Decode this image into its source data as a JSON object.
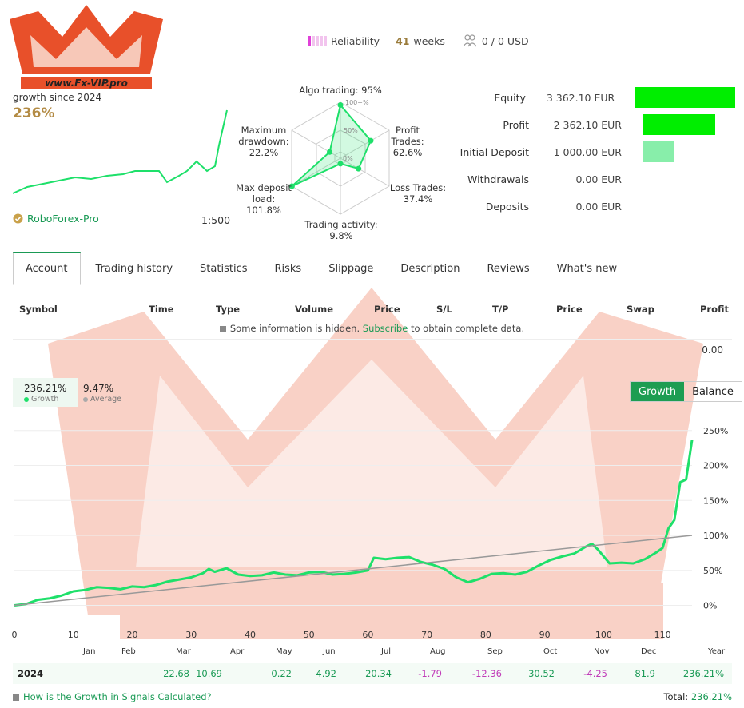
{
  "logo": {
    "text": "www.Fx-VIP.pro"
  },
  "header": {
    "reliability_label": "Reliability",
    "weeks_value": "41",
    "weeks_label": "weeks",
    "subscribers": "0 / 0 USD"
  },
  "growth": {
    "since_label": "growth since 2024",
    "value": "236%"
  },
  "broker": {
    "name": "RoboForex-Pro",
    "leverage": "1:500"
  },
  "radar": {
    "labels": {
      "algo": "Algo trading: 95%",
      "profit_trades": "Profit\nTrades:\n62.6%",
      "loss_trades": "Loss Trades:\n37.4%",
      "activity": "Trading activity: 9.8%",
      "max_deposit_load": "Max deposit\nload:\n101.8%",
      "max_drawdown": "Maximum\ndrawdown:\n22.2%"
    },
    "scale": [
      "100+%",
      "50%",
      "0%"
    ],
    "values": {
      "algo": 95,
      "profit_trades": 62.6,
      "loss_trades": 37.4,
      "activity": 9.8,
      "max_deposit_load": 101.8,
      "max_drawdown": 22.2
    }
  },
  "financials": [
    {
      "label": "Equity",
      "value": "3 362.10 EUR",
      "amount": 3362.1,
      "color": "#00ee00"
    },
    {
      "label": "Profit",
      "value": "2 362.10 EUR",
      "amount": 2362.1,
      "color": "#00ee00"
    },
    {
      "label": "Initial Deposit",
      "value": "1 000.00 EUR",
      "amount": 1000.0,
      "color": "#88eeaa"
    },
    {
      "label": "Withdrawals",
      "value": "0.00 EUR",
      "amount": 0,
      "color": "#88eeaa"
    },
    {
      "label": "Deposits",
      "value": "0.00 EUR",
      "amount": 0,
      "color": "#88eeaa"
    }
  ],
  "tabs": [
    "Account",
    "Trading history",
    "Statistics",
    "Risks",
    "Slippage",
    "Description",
    "Reviews",
    "What's new"
  ],
  "table": {
    "columns": [
      "Symbol",
      "Time",
      "Type",
      "Volume",
      "Price",
      "S/L",
      "T/P",
      "Price",
      "Swap",
      "Profit"
    ],
    "hidden_text_before": "Some information is hidden.",
    "hidden_link": "Subscribe",
    "hidden_text_after": "to obtain complete data.",
    "profit_total": "0.00"
  },
  "chart_legend": {
    "growth_value": "236.21%",
    "growth_label": "Growth",
    "average_value": "9.47%",
    "average_label": "Average"
  },
  "toggle": {
    "growth": "Growth",
    "balance": "Balance"
  },
  "chart_data": {
    "type": "line",
    "xlim": [
      0,
      115
    ],
    "ylim": [
      -20,
      260
    ],
    "x_ticks": [
      "0",
      "10",
      "20",
      "30",
      "40",
      "50",
      "60",
      "70",
      "80",
      "90",
      "100",
      "110"
    ],
    "y_ticks": [
      "250%",
      "200%",
      "150%",
      "100%",
      "50%",
      "0%"
    ],
    "series": [
      {
        "name": "Growth",
        "color": "#1ee06a",
        "points": [
          [
            0,
            0
          ],
          [
            2,
            2
          ],
          [
            4,
            8
          ],
          [
            6,
            10
          ],
          [
            8,
            14
          ],
          [
            10,
            20
          ],
          [
            12,
            22
          ],
          [
            14,
            26
          ],
          [
            16,
            25
          ],
          [
            18,
            23
          ],
          [
            20,
            27
          ],
          [
            22,
            26
          ],
          [
            24,
            29
          ],
          [
            26,
            34
          ],
          [
            28,
            37
          ],
          [
            30,
            40
          ],
          [
            32,
            46
          ],
          [
            33,
            52
          ],
          [
            34,
            48
          ],
          [
            36,
            53
          ],
          [
            38,
            44
          ],
          [
            40,
            42
          ],
          [
            42,
            43
          ],
          [
            44,
            47
          ],
          [
            46,
            44
          ],
          [
            48,
            43
          ],
          [
            50,
            47
          ],
          [
            52,
            48
          ],
          [
            54,
            44
          ],
          [
            56,
            45
          ],
          [
            58,
            47
          ],
          [
            60,
            50
          ],
          [
            61,
            68
          ],
          [
            63,
            66
          ],
          [
            65,
            68
          ],
          [
            67,
            69
          ],
          [
            69,
            62
          ],
          [
            71,
            58
          ],
          [
            73,
            52
          ],
          [
            75,
            40
          ],
          [
            77,
            33
          ],
          [
            79,
            38
          ],
          [
            81,
            45
          ],
          [
            83,
            46
          ],
          [
            85,
            44
          ],
          [
            87,
            48
          ],
          [
            89,
            57
          ],
          [
            91,
            65
          ],
          [
            93,
            70
          ],
          [
            95,
            74
          ],
          [
            97,
            84
          ],
          [
            98,
            88
          ],
          [
            99,
            80
          ],
          [
            100,
            70
          ],
          [
            101,
            60
          ],
          [
            103,
            61
          ],
          [
            105,
            60
          ],
          [
            107,
            66
          ],
          [
            109,
            76
          ],
          [
            110,
            82
          ],
          [
            111,
            110
          ],
          [
            112,
            122
          ],
          [
            113,
            176
          ],
          [
            114,
            180
          ],
          [
            115,
            236.21
          ]
        ]
      },
      {
        "name": "Average",
        "color": "#999999",
        "points": [
          [
            0,
            0
          ],
          [
            115,
            100
          ]
        ]
      }
    ]
  },
  "months": [
    "Jan",
    "Feb",
    "Mar",
    "Apr",
    "May",
    "Jun",
    "Jul",
    "Aug",
    "Sep",
    "Oct",
    "Nov",
    "Dec",
    "Year"
  ],
  "year_row": {
    "year": "2024",
    "values": [
      "",
      "",
      "22.68",
      "10.69",
      "0.22",
      "4.92",
      "20.34",
      "-1.79",
      "-12.36",
      "30.52",
      "-4.25",
      "81.9",
      "236.21%"
    ]
  },
  "footer": {
    "link": "How is the Growth in Signals Calculated?",
    "total_label": "Total:",
    "total_value": "236.21%"
  }
}
